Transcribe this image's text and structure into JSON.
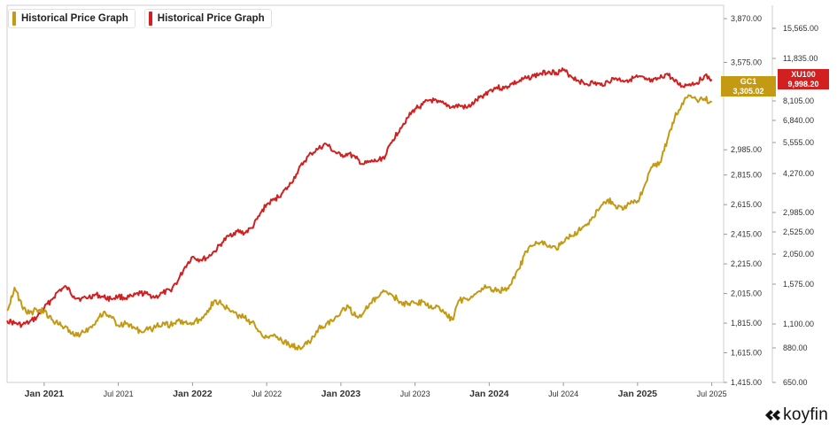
{
  "chart_data": {
    "type": "line",
    "title": "Historical Price Graph",
    "x_range": [
      2020.75,
      2025.58
    ],
    "x_ticks": [
      {
        "label": "Jan 2021",
        "t": 2021.0,
        "bold": true
      },
      {
        "label": "Jul 2021",
        "t": 2021.5,
        "bold": false
      },
      {
        "label": "Jan 2022",
        "t": 2022.0,
        "bold": true
      },
      {
        "label": "Jul 2022",
        "t": 2022.5,
        "bold": false
      },
      {
        "label": "Jan 2023",
        "t": 2023.0,
        "bold": true
      },
      {
        "label": "Jul 2023",
        "t": 2023.5,
        "bold": false
      },
      {
        "label": "Jan 2024",
        "t": 2024.0,
        "bold": true
      },
      {
        "label": "Jul 2024",
        "t": 2024.5,
        "bold": false
      },
      {
        "label": "Jan 2025",
        "t": 2025.0,
        "bold": true
      },
      {
        "label": "Jul 2025",
        "t": 2025.5,
        "bold": false
      }
    ],
    "y_left": {
      "series": "GC1",
      "ylim": [
        1415,
        3960
      ],
      "ticks": [
        {
          "label": "3,870.00",
          "v": 3870
        },
        {
          "label": "3,575.00",
          "v": 3575
        },
        {
          "label": "2,985.00",
          "v": 2985
        },
        {
          "label": "2,815.00",
          "v": 2815
        },
        {
          "label": "2,615.00",
          "v": 2615
        },
        {
          "label": "2,415.00",
          "v": 2415
        },
        {
          "label": "2,215.00",
          "v": 2215
        },
        {
          "label": "2,015.00",
          "v": 2015
        },
        {
          "label": "1,815.00",
          "v": 1815
        },
        {
          "label": "1,615.00",
          "v": 1615
        },
        {
          "label": "1,415.00",
          "v": 1415
        }
      ]
    },
    "y_right": {
      "series": "XU100",
      "ticks": [
        {
          "label": "15,565.00",
          "v": 15565
        },
        {
          "label": "11,835.00",
          "v": 11835
        },
        {
          "label": "8,105.00",
          "v": 8105
        },
        {
          "label": "6,840.00",
          "v": 6840
        },
        {
          "label": "5,555.00",
          "v": 5555
        },
        {
          "label": "4,270.00",
          "v": 4270
        },
        {
          "label": "2,985.00",
          "v": 2985
        },
        {
          "label": "2,525.00",
          "v": 2525
        },
        {
          "label": "2,050.00",
          "v": 2050
        },
        {
          "label": "1,575.00",
          "v": 1575
        },
        {
          "label": "1,100.00",
          "v": 1100
        },
        {
          "label": "880.00",
          "v": 880
        },
        {
          "label": "650.00",
          "v": 650
        }
      ]
    },
    "series": [
      {
        "name": "GC1",
        "legend": "Historical Price Graph",
        "color": "#c49a14",
        "last_label": "GC1",
        "last_value": "3,305.02",
        "axis": "left",
        "points": [
          [
            2020.75,
            1900
          ],
          [
            2020.8,
            2055
          ],
          [
            2020.85,
            1930
          ],
          [
            2020.9,
            1880
          ],
          [
            2020.95,
            1905
          ],
          [
            2021.0,
            1895
          ],
          [
            2021.05,
            1840
          ],
          [
            2021.1,
            1805
          ],
          [
            2021.15,
            1790
          ],
          [
            2021.2,
            1730
          ],
          [
            2021.25,
            1750
          ],
          [
            2021.3,
            1780
          ],
          [
            2021.35,
            1830
          ],
          [
            2021.4,
            1890
          ],
          [
            2021.45,
            1860
          ],
          [
            2021.5,
            1800
          ],
          [
            2021.55,
            1810
          ],
          [
            2021.6,
            1790
          ],
          [
            2021.65,
            1760
          ],
          [
            2021.7,
            1770
          ],
          [
            2021.75,
            1785
          ],
          [
            2021.8,
            1820
          ],
          [
            2021.85,
            1800
          ],
          [
            2021.9,
            1830
          ],
          [
            2021.95,
            1820
          ],
          [
            2022.0,
            1815
          ],
          [
            2022.05,
            1840
          ],
          [
            2022.1,
            1900
          ],
          [
            2022.15,
            1970
          ],
          [
            2022.2,
            1940
          ],
          [
            2022.25,
            1900
          ],
          [
            2022.3,
            1870
          ],
          [
            2022.35,
            1850
          ],
          [
            2022.4,
            1820
          ],
          [
            2022.45,
            1760
          ],
          [
            2022.5,
            1720
          ],
          [
            2022.55,
            1740
          ],
          [
            2022.6,
            1700
          ],
          [
            2022.65,
            1670
          ],
          [
            2022.7,
            1650
          ],
          [
            2022.75,
            1660
          ],
          [
            2022.8,
            1700
          ],
          [
            2022.85,
            1780
          ],
          [
            2022.9,
            1810
          ],
          [
            2022.95,
            1830
          ],
          [
            2023.0,
            1890
          ],
          [
            2023.05,
            1930
          ],
          [
            2023.1,
            1860
          ],
          [
            2023.15,
            1880
          ],
          [
            2023.2,
            1950
          ],
          [
            2023.25,
            1990
          ],
          [
            2023.3,
            2030
          ],
          [
            2023.35,
            2000
          ],
          [
            2023.4,
            1960
          ],
          [
            2023.45,
            1940
          ],
          [
            2023.5,
            1950
          ],
          [
            2023.55,
            1960
          ],
          [
            2023.6,
            1920
          ],
          [
            2023.65,
            1930
          ],
          [
            2023.7,
            1880
          ],
          [
            2023.75,
            1840
          ],
          [
            2023.8,
            1970
          ],
          [
            2023.85,
            1980
          ],
          [
            2023.9,
            2010
          ],
          [
            2023.95,
            2050
          ],
          [
            2024.0,
            2060
          ],
          [
            2024.05,
            2030
          ],
          [
            2024.1,
            2040
          ],
          [
            2024.15,
            2080
          ],
          [
            2024.2,
            2180
          ],
          [
            2024.25,
            2300
          ],
          [
            2024.3,
            2340
          ],
          [
            2024.35,
            2360
          ],
          [
            2024.4,
            2330
          ],
          [
            2024.45,
            2320
          ],
          [
            2024.5,
            2360
          ],
          [
            2024.55,
            2400
          ],
          [
            2024.6,
            2440
          ],
          [
            2024.65,
            2480
          ],
          [
            2024.7,
            2530
          ],
          [
            2024.75,
            2600
          ],
          [
            2024.8,
            2650
          ],
          [
            2024.85,
            2610
          ],
          [
            2024.9,
            2580
          ],
          [
            2024.95,
            2620
          ],
          [
            2025.0,
            2640
          ],
          [
            2025.05,
            2750
          ],
          [
            2025.1,
            2870
          ],
          [
            2025.15,
            2900
          ],
          [
            2025.2,
            3050
          ],
          [
            2025.25,
            3200
          ],
          [
            2025.3,
            3300
          ],
          [
            2025.35,
            3350
          ],
          [
            2025.4,
            3320
          ],
          [
            2025.45,
            3330
          ],
          [
            2025.5,
            3305
          ]
        ]
      },
      {
        "name": "XU100",
        "legend": "Historical Price Graph",
        "color": "#d21f1f",
        "last_label": "XU100",
        "last_value": "9,998.20",
        "axis": "right",
        "points": [
          [
            2020.75,
            1140
          ],
          [
            2020.8,
            1110
          ],
          [
            2020.85,
            1090
          ],
          [
            2020.9,
            1120
          ],
          [
            2020.95,
            1180
          ],
          [
            2021.0,
            1290
          ],
          [
            2021.05,
            1390
          ],
          [
            2021.1,
            1500
          ],
          [
            2021.15,
            1540
          ],
          [
            2021.2,
            1430
          ],
          [
            2021.25,
            1400
          ],
          [
            2021.3,
            1420
          ],
          [
            2021.35,
            1450
          ],
          [
            2021.4,
            1420
          ],
          [
            2021.45,
            1400
          ],
          [
            2021.5,
            1430
          ],
          [
            2021.55,
            1410
          ],
          [
            2021.6,
            1430
          ],
          [
            2021.65,
            1470
          ],
          [
            2021.7,
            1450
          ],
          [
            2021.75,
            1420
          ],
          [
            2021.8,
            1470
          ],
          [
            2021.85,
            1500
          ],
          [
            2021.9,
            1620
          ],
          [
            2021.95,
            1850
          ],
          [
            2022.0,
            2010
          ],
          [
            2022.05,
            1960
          ],
          [
            2022.1,
            1990
          ],
          [
            2022.15,
            2110
          ],
          [
            2022.2,
            2300
          ],
          [
            2022.25,
            2450
          ],
          [
            2022.3,
            2540
          ],
          [
            2022.35,
            2500
          ],
          [
            2022.4,
            2620
          ],
          [
            2022.45,
            2900
          ],
          [
            2022.5,
            3250
          ],
          [
            2022.55,
            3400
          ],
          [
            2022.6,
            3600
          ],
          [
            2022.65,
            3850
          ],
          [
            2022.7,
            4250
          ],
          [
            2022.75,
            4750
          ],
          [
            2022.8,
            5100
          ],
          [
            2022.85,
            5300
          ],
          [
            2022.9,
            5500
          ],
          [
            2022.95,
            5200
          ],
          [
            2023.0,
            5000
          ],
          [
            2023.05,
            5100
          ],
          [
            2023.1,
            4900
          ],
          [
            2023.15,
            4650
          ],
          [
            2023.2,
            4750
          ],
          [
            2023.25,
            4800
          ],
          [
            2023.3,
            5000
          ],
          [
            2023.35,
            5700
          ],
          [
            2023.4,
            6400
          ],
          [
            2023.45,
            7000
          ],
          [
            2023.5,
            7600
          ],
          [
            2023.55,
            7850
          ],
          [
            2023.6,
            8200
          ],
          [
            2023.65,
            8000
          ],
          [
            2023.7,
            7900
          ],
          [
            2023.75,
            7700
          ],
          [
            2023.8,
            7800
          ],
          [
            2023.85,
            7650
          ],
          [
            2023.9,
            8000
          ],
          [
            2023.95,
            8500
          ],
          [
            2024.0,
            9000
          ],
          [
            2024.05,
            9300
          ],
          [
            2024.1,
            9200
          ],
          [
            2024.15,
            9600
          ],
          [
            2024.2,
            9800
          ],
          [
            2024.25,
            10100
          ],
          [
            2024.3,
            10300
          ],
          [
            2024.35,
            10500
          ],
          [
            2024.4,
            10700
          ],
          [
            2024.45,
            10600
          ],
          [
            2024.5,
            10800
          ],
          [
            2024.55,
            10300
          ],
          [
            2024.6,
            9900
          ],
          [
            2024.65,
            9600
          ],
          [
            2024.7,
            9700
          ],
          [
            2024.75,
            9500
          ],
          [
            2024.8,
            9800
          ],
          [
            2024.85,
            10100
          ],
          [
            2024.9,
            9900
          ],
          [
            2024.95,
            10000
          ],
          [
            2025.0,
            10200
          ],
          [
            2025.05,
            10000
          ],
          [
            2025.1,
            9800
          ],
          [
            2025.15,
            10100
          ],
          [
            2025.2,
            10500
          ],
          [
            2025.25,
            9800
          ],
          [
            2025.3,
            9400
          ],
          [
            2025.35,
            9600
          ],
          [
            2025.4,
            9700
          ],
          [
            2025.45,
            10300
          ],
          [
            2025.5,
            9998
          ]
        ]
      }
    ]
  },
  "logo": {
    "text": "koyfin"
  }
}
